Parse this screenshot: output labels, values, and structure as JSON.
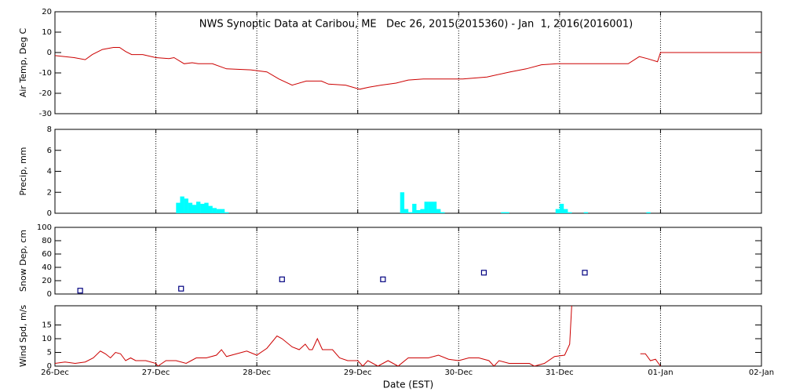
{
  "chart_data": [
    {
      "type": "line",
      "title": "NWS Synoptic Data at Caribou, ME   Dec 26, 2015(2015360) - Jan  1, 2016(2016001)",
      "y_label": "Air Temp, Deg C",
      "color": "#cc0000",
      "xlim": [
        0,
        7
      ],
      "xticks": [
        0,
        1,
        2,
        3,
        4,
        5,
        6,
        7
      ],
      "ylim": [
        -30,
        20
      ],
      "yticks": [
        -30,
        -20,
        -10,
        0,
        10,
        20
      ],
      "x": [
        0,
        0.19,
        0.3,
        0.37,
        0.47,
        0.58,
        0.64,
        0.7,
        0.76,
        0.87,
        1.0,
        1.13,
        1.18,
        1.28,
        1.36,
        1.42,
        1.56,
        1.7,
        1.94,
        2.1,
        2.22,
        2.35,
        2.49,
        2.64,
        2.71,
        2.88,
        3.02,
        3.11,
        3.23,
        3.38,
        3.5,
        3.65,
        4.04,
        4.28,
        4.51,
        4.67,
        4.82,
        4.98,
        5.68,
        5.79,
        5.87,
        5.97,
        6.0,
        7.0
      ],
      "values": [
        -1.5,
        -2.5,
        -3.5,
        -1,
        1.5,
        2.5,
        2.5,
        0.5,
        -1,
        -1,
        -2.5,
        -3,
        -2.5,
        -5.5,
        -5,
        -5.5,
        -5.5,
        -8,
        -8.5,
        -9.5,
        -13,
        -16,
        -14,
        -14,
        -15.5,
        -16,
        -18,
        -17,
        -16,
        -15,
        -13.5,
        -13,
        -13,
        -12,
        -9.5,
        -8,
        -6,
        -5.5,
        -5.5,
        -2,
        -3,
        -4.5,
        0,
        0
      ]
    },
    {
      "type": "bar",
      "y_label": "Precip, mm",
      "color": "#00ffff",
      "xlim": [
        0,
        7
      ],
      "xticks": [
        0,
        1,
        2,
        3,
        4,
        5,
        6,
        7
      ],
      "ylim": [
        0,
        8
      ],
      "yticks": [
        0,
        2,
        4,
        6,
        8
      ],
      "x": [
        1.2,
        1.24,
        1.28,
        1.32,
        1.36,
        1.4,
        1.44,
        1.48,
        1.52,
        1.56,
        1.6,
        1.64,
        1.68,
        3.42,
        3.46,
        3.5,
        3.54,
        3.58,
        3.62,
        3.66,
        3.7,
        3.74,
        3.78,
        3.82,
        4.42,
        4.46,
        4.96,
        5.0,
        5.04,
        5.08,
        5.24,
        5.86
      ],
      "values": [
        1,
        1.6,
        1.4,
        1.0,
        0.8,
        1.1,
        0.9,
        1.0,
        0.7,
        0.5,
        0.4,
        0.4,
        0.1,
        2.0,
        0.4,
        0.1,
        0.9,
        0.3,
        0.4,
        1.1,
        1.1,
        1.1,
        0.4,
        0.1,
        0.1,
        0.1,
        0.4,
        0.9,
        0.4,
        0.1,
        0.1,
        0.1
      ]
    },
    {
      "type": "scatter",
      "y_label": "Snow Dep, cm",
      "color": "#000080",
      "xlim": [
        0,
        7
      ],
      "xticks": [
        0,
        1,
        2,
        3,
        4,
        5,
        6,
        7
      ],
      "ylim": [
        0,
        100
      ],
      "yticks": [
        0,
        20,
        40,
        60,
        80,
        100
      ],
      "x": [
        0.25,
        1.25,
        2.25,
        3.25,
        4.25,
        5.25
      ],
      "values": [
        5,
        8,
        22,
        22,
        32,
        32
      ]
    },
    {
      "type": "line",
      "y_label": "Wind Spd, m/s",
      "x_label": "Date (EST)",
      "color": "#cc0000",
      "xlim": [
        0,
        7
      ],
      "xticks": [
        {
          "value": 0,
          "label": "26-Dec"
        },
        {
          "value": 1,
          "label": "27-Dec"
        },
        {
          "value": 2,
          "label": "28-Dec"
        },
        {
          "value": 3,
          "label": "29-Dec"
        },
        {
          "value": 4,
          "label": "30-Dec"
        },
        {
          "value": 5,
          "label": "31-Dec"
        },
        {
          "value": 6,
          "label": "01-Jan"
        },
        {
          "value": 7,
          "label": "02-Jan"
        }
      ],
      "ylim": [
        0,
        22
      ],
      "yticks": [
        0,
        5,
        10,
        15
      ],
      "x": [
        0,
        0.1,
        0.2,
        0.3,
        0.38,
        0.45,
        0.5,
        0.55,
        0.6,
        0.65,
        0.7,
        0.75,
        0.8,
        0.9,
        1.0,
        1.02,
        1.1,
        1.2,
        1.3,
        1.35,
        1.4,
        1.5,
        1.6,
        1.65,
        1.7,
        1.8,
        1.9,
        2.0,
        2.1,
        2.2,
        2.25,
        2.35,
        2.42,
        2.48,
        2.52,
        2.55,
        2.6,
        2.65,
        2.75,
        2.82,
        2.9,
        3.0,
        3.05,
        3.1,
        3.2,
        3.3,
        3.4,
        3.5,
        3.6,
        3.7,
        3.8,
        3.9,
        4.0,
        4.1,
        4.2,
        4.3,
        4.35,
        4.4,
        4.5,
        4.6,
        4.7,
        4.75,
        4.85,
        4.95,
        5.05,
        5.1,
        5.12,
        5.5,
        5.8,
        5.85,
        5.9,
        5.95,
        6.0
      ],
      "values": [
        1,
        1.5,
        1,
        1.5,
        3,
        5.5,
        4.5,
        3,
        5,
        4.5,
        2,
        3,
        2,
        2,
        1,
        0,
        2,
        2,
        1,
        2,
        3,
        3,
        4,
        6,
        3.5,
        4.5,
        5.5,
        4,
        6.5,
        11,
        10,
        7,
        6,
        8,
        6,
        6,
        10,
        6,
        6,
        3,
        2,
        2,
        0,
        2,
        0,
        2,
        0,
        3,
        3,
        3,
        4,
        2.5,
        2,
        3,
        3,
        2,
        0,
        2,
        1,
        1,
        1,
        0,
        1,
        3.5,
        4,
        8,
        22,
        null,
        4.5,
        4.5,
        2,
        2.5,
        0
      ]
    }
  ]
}
